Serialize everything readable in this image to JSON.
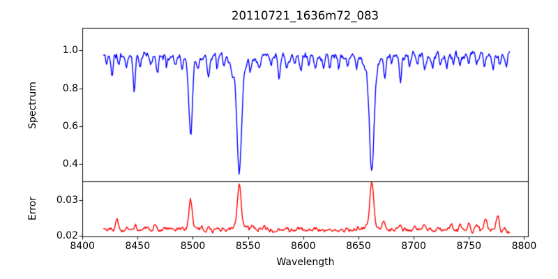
{
  "chart_data": {
    "type": "line",
    "title": "20110721_1636m72_083",
    "xlabel": "Wavelength",
    "grid": false,
    "legend": null,
    "background": "#ffffff",
    "xlim": [
      8399.9,
      8803.5
    ],
    "x_ticks": [
      8400,
      8450,
      8500,
      8550,
      8600,
      8650,
      8700,
      8750,
      8800
    ],
    "x_tick_labels": [
      "8400",
      "8450",
      "8500",
      "8550",
      "8600",
      "8650",
      "8700",
      "8750",
      "8800"
    ],
    "x_start": 8419,
    "x_end": 8787,
    "n_points": 492,
    "panels": [
      {
        "name": "spectrum",
        "ylabel": "Spectrum",
        "line_color": "#0000ff",
        "ylim": [
          0.308,
          1.119
        ],
        "y_ticks": [
          1.0,
          0.8,
          0.6,
          0.4
        ],
        "y_tick_labels": [
          "1.0",
          "0.8",
          "0.6",
          "0.4"
        ],
        "continuum": 0.972,
        "noise_amplitude": 0.024,
        "noise_seed": 11,
        "clip_max": 1.04,
        "absorption_lines": [
          [
            8422,
            0.045,
            0.8
          ],
          [
            8427,
            0.105,
            0.9
          ],
          [
            8433,
            0.05,
            0.8
          ],
          [
            8440,
            0.06,
            0.9
          ],
          [
            8447,
            0.185,
            1.0
          ],
          [
            8452,
            0.05,
            0.8
          ],
          [
            8462,
            0.06,
            0.9
          ],
          [
            8468,
            0.1,
            0.9
          ],
          [
            8476,
            0.06,
            0.8
          ],
          [
            8484,
            0.05,
            0.8
          ],
          [
            8490,
            0.045,
            0.8
          ],
          [
            8498,
            0.38,
            1.5
          ],
          [
            8505,
            0.05,
            0.8
          ],
          [
            8514,
            0.115,
            1.0
          ],
          [
            8522,
            0.06,
            0.8
          ],
          [
            8528,
            0.05,
            0.8
          ],
          [
            8536,
            0.08,
            0.9
          ],
          [
            8542,
            0.53,
            2.0
          ],
          [
            8552,
            0.055,
            0.8
          ],
          [
            8560,
            0.06,
            0.9
          ],
          [
            8571,
            0.05,
            0.8
          ],
          [
            8578,
            0.1,
            1.0
          ],
          [
            8585,
            0.06,
            0.8
          ],
          [
            8592,
            0.05,
            0.8
          ],
          [
            8598,
            0.085,
            0.9
          ],
          [
            8605,
            0.05,
            0.8
          ],
          [
            8611,
            0.07,
            0.9
          ],
          [
            8618,
            0.05,
            0.8
          ],
          [
            8624,
            0.05,
            0.8
          ],
          [
            8632,
            0.06,
            0.8
          ],
          [
            8640,
            0.05,
            0.8
          ],
          [
            8648,
            0.06,
            0.9
          ],
          [
            8662,
            0.53,
            2.0
          ],
          [
            8674,
            0.1,
            0.9
          ],
          [
            8680,
            0.06,
            0.8
          ],
          [
            8688,
            0.145,
            1.0
          ],
          [
            8696,
            0.05,
            0.8
          ],
          [
            8703,
            0.05,
            0.8
          ],
          [
            8710,
            0.065,
            0.9
          ],
          [
            8717,
            0.05,
            0.8
          ],
          [
            8724,
            0.05,
            0.8
          ],
          [
            8730,
            0.06,
            0.8
          ],
          [
            8736,
            0.05,
            0.8
          ],
          [
            8742,
            0.065,
            0.9
          ],
          [
            8750,
            0.05,
            0.8
          ],
          [
            8757,
            0.05,
            0.8
          ],
          [
            8764,
            0.07,
            0.9
          ],
          [
            8772,
            0.08,
            0.9
          ],
          [
            8778,
            0.055,
            0.8
          ],
          [
            8784,
            0.045,
            0.8
          ]
        ],
        "line_wings": [
          [
            8498,
            0.05,
            4.5
          ],
          [
            8542,
            0.08,
            6
          ],
          [
            8662,
            0.08,
            6
          ]
        ],
        "key_features": {
          "deep_lines_wavelengths": [
            8498,
            8542,
            8662
          ],
          "deep_lines_min_flux": [
            0.54,
            0.36,
            0.36
          ]
        }
      },
      {
        "name": "error",
        "ylabel": "Error",
        "line_color": "#ff0000",
        "ylim": [
          0.0199,
          0.0352
        ],
        "y_ticks": [
          0.03,
          0.02
        ],
        "y_tick_labels": [
          "0.03",
          "0.02"
        ],
        "baseline": 0.0217,
        "noise_amplitude": 0.0007,
        "noise_seed": 29,
        "clip_max": 0.035,
        "end_drop": 0.0008,
        "emission_peaks": [
          [
            8419,
            0.0009,
            3.0
          ],
          [
            8431,
            0.0034,
            1.2
          ],
          [
            8440,
            0.0008,
            1.0
          ],
          [
            8448,
            0.0013,
            1.0
          ],
          [
            8458,
            0.0007,
            1.0
          ],
          [
            8466,
            0.0017,
            1.1
          ],
          [
            8475,
            0.0008,
            1.0
          ],
          [
            8498,
            0.0078,
            1.4
          ],
          [
            8508,
            0.001,
            1.0
          ],
          [
            8514,
            0.001,
            1.0
          ],
          [
            8542,
            0.012,
            1.7
          ],
          [
            8554,
            0.001,
            1.2
          ],
          [
            8565,
            0.0006,
            1.0
          ],
          [
            8578,
            0.0007,
            1.0
          ],
          [
            8598,
            0.0007,
            1.0
          ],
          [
            8611,
            0.0006,
            1.0
          ],
          [
            8634,
            0.0006,
            1.0
          ],
          [
            8650,
            0.0007,
            1.0
          ],
          [
            8662,
            0.0122,
            1.7
          ],
          [
            8673,
            0.0023,
            1.2
          ],
          [
            8688,
            0.0016,
            1.1
          ],
          [
            8700,
            0.0008,
            1.0
          ],
          [
            8710,
            0.0014,
            1.1
          ],
          [
            8722,
            0.0008,
            1.0
          ],
          [
            8734,
            0.0009,
            1.0
          ],
          [
            8742,
            0.0012,
            1.1
          ],
          [
            8750,
            0.0015,
            1.1
          ],
          [
            8757,
            0.0018,
            1.1
          ],
          [
            8765,
            0.0035,
            1.2
          ],
          [
            8776,
            0.0041,
            1.2
          ]
        ],
        "peak_wings": [
          [
            8498,
            0.0008,
            4
          ],
          [
            8542,
            0.0012,
            5
          ],
          [
            8662,
            0.0012,
            5
          ]
        ],
        "key_features": {
          "peak_wavelengths": [
            8498,
            8542,
            8662
          ],
          "peak_values": [
            0.0295,
            0.0348,
            0.0349
          ]
        }
      }
    ]
  }
}
